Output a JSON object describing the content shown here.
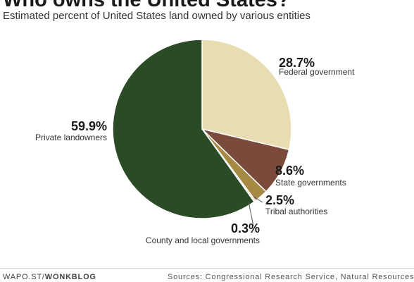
{
  "header": {
    "title": "Who owns the United States?",
    "subtitle": "Estimated percent of United States land owned by various entities"
  },
  "chart_data": {
    "type": "pie",
    "title": "Who owns the United States?",
    "subtitle": "Estimated percent of United States land owned by various entities",
    "slices": [
      {
        "label": "Federal government",
        "value": 28.7,
        "display": "28.7%",
        "color": "#e8ddb1"
      },
      {
        "label": "State governments",
        "value": 8.6,
        "display": "8.6%",
        "color": "#7a4a3a"
      },
      {
        "label": "Tribal authorities",
        "value": 2.5,
        "display": "2.5%",
        "color": "#a68a43"
      },
      {
        "label": "County and local governments",
        "value": 0.3,
        "display": "0.3%",
        "color": "#d9d0b0"
      },
      {
        "label": "Private landowners",
        "value": 59.9,
        "display": "59.9%",
        "color": "#2b4a26"
      }
    ]
  },
  "footer": {
    "source_prefix": "WAPO.ST/",
    "source_brand": "WONKBLOG",
    "sources": "Sources: Congressional Research Service, Natural Resources"
  }
}
